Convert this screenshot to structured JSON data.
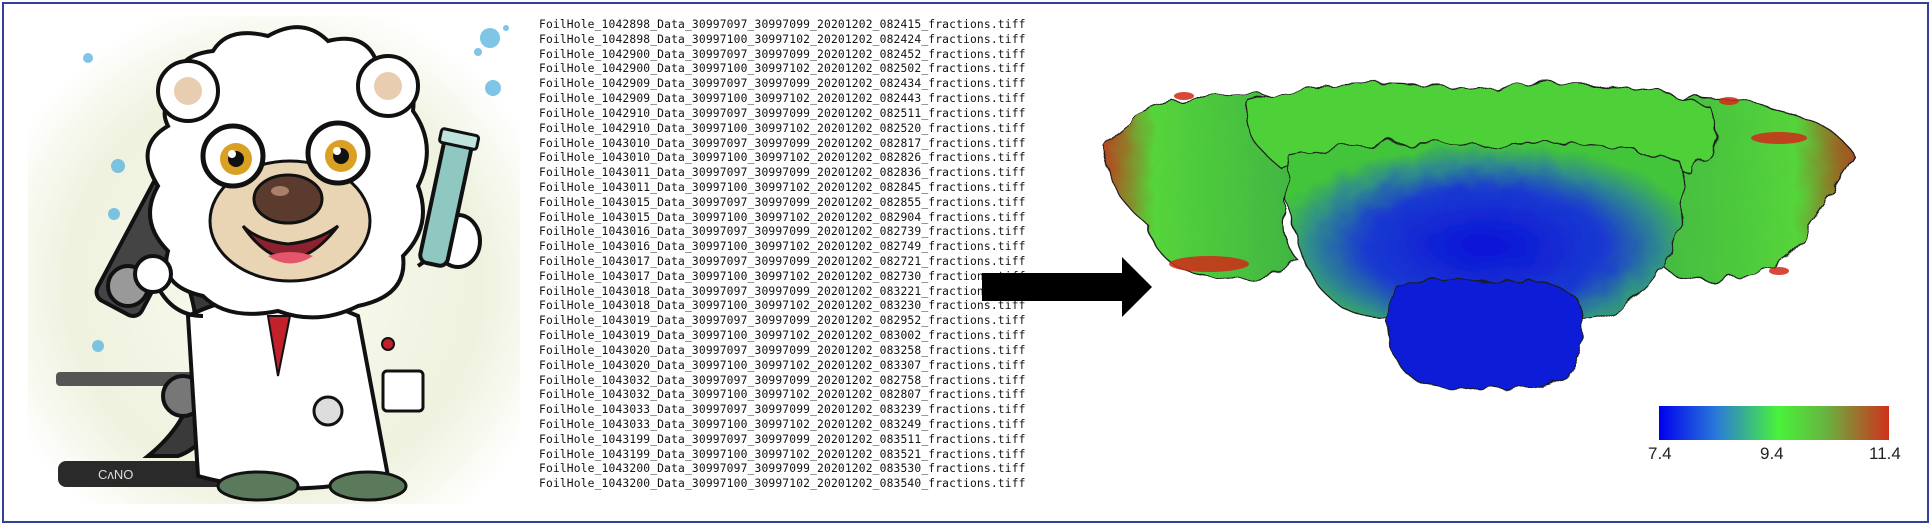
{
  "file_list": [
    "FoilHole_1042898_Data_30997097_30997099_20201202_082415_fractions.tiff",
    "FoilHole_1042898_Data_30997100_30997102_20201202_082424_fractions.tiff",
    "FoilHole_1042900_Data_30997097_30997099_20201202_082452_fractions.tiff",
    "FoilHole_1042900_Data_30997100_30997102_20201202_082502_fractions.tiff",
    "FoilHole_1042909_Data_30997097_30997099_20201202_082434_fractions.tiff",
    "FoilHole_1042909_Data_30997100_30997102_20201202_082443_fractions.tiff",
    "FoilHole_1042910_Data_30997097_30997099_20201202_082511_fractions.tiff",
    "FoilHole_1042910_Data_30997100_30997102_20201202_082520_fractions.tiff",
    "FoilHole_1043010_Data_30997097_30997099_20201202_082817_fractions.tiff",
    "FoilHole_1043010_Data_30997100_30997102_20201202_082826_fractions.tiff",
    "FoilHole_1043011_Data_30997097_30997099_20201202_082836_fractions.tiff",
    "FoilHole_1043011_Data_30997100_30997102_20201202_082845_fractions.tiff",
    "FoilHole_1043015_Data_30997097_30997099_20201202_082855_fractions.tiff",
    "FoilHole_1043015_Data_30997100_30997102_20201202_082904_fractions.tiff",
    "FoilHole_1043016_Data_30997097_30997099_20201202_082739_fractions.tiff",
    "FoilHole_1043016_Data_30997100_30997102_20201202_082749_fractions.tiff",
    "FoilHole_1043017_Data_30997097_30997099_20201202_082721_fractions.tiff",
    "FoilHole_1043017_Data_30997100_30997102_20201202_082730_fractions.tiff",
    "FoilHole_1043018_Data_30997097_30997099_20201202_083221_fractions.tiff",
    "FoilHole_1043018_Data_30997100_30997102_20201202_083230_fractions.tiff",
    "FoilHole_1043019_Data_30997097_30997099_20201202_082952_fractions.tiff",
    "FoilHole_1043019_Data_30997100_30997102_20201202_083002_fractions.tiff",
    "FoilHole_1043020_Data_30997097_30997099_20201202_083258_fractions.tiff",
    "FoilHole_1043020_Data_30997100_30997102_20201202_083307_fractions.tiff",
    "FoilHole_1043032_Data_30997097_30997099_20201202_082758_fractions.tiff",
    "FoilHole_1043032_Data_30997100_30997102_20201202_082807_fractions.tiff",
    "FoilHole_1043033_Data_30997097_30997099_20201202_083239_fractions.tiff",
    "FoilHole_1043033_Data_30997100_30997102_20201202_083249_fractions.tiff",
    "FoilHole_1043199_Data_30997097_30997099_20201202_083511_fractions.tiff",
    "FoilHole_1043199_Data_30997100_30997102_20201202_083521_fractions.tiff",
    "FoilHole_1043200_Data_30997097_30997099_20201202_083530_fractions.tiff",
    "FoilHole_1043200_Data_30997100_30997102_20201202_083540_fractions.tiff"
  ],
  "colorbar": {
    "min_label": "7.4",
    "mid_label": "9.4",
    "max_label": "11.4",
    "colors": [
      "#0000ee",
      "#49f23a",
      "#d0301c"
    ]
  },
  "cartoon": {
    "microscope_label": "CᴧNO"
  },
  "colors": {
    "frame_border": "#33419a",
    "arrow": "#000000"
  }
}
